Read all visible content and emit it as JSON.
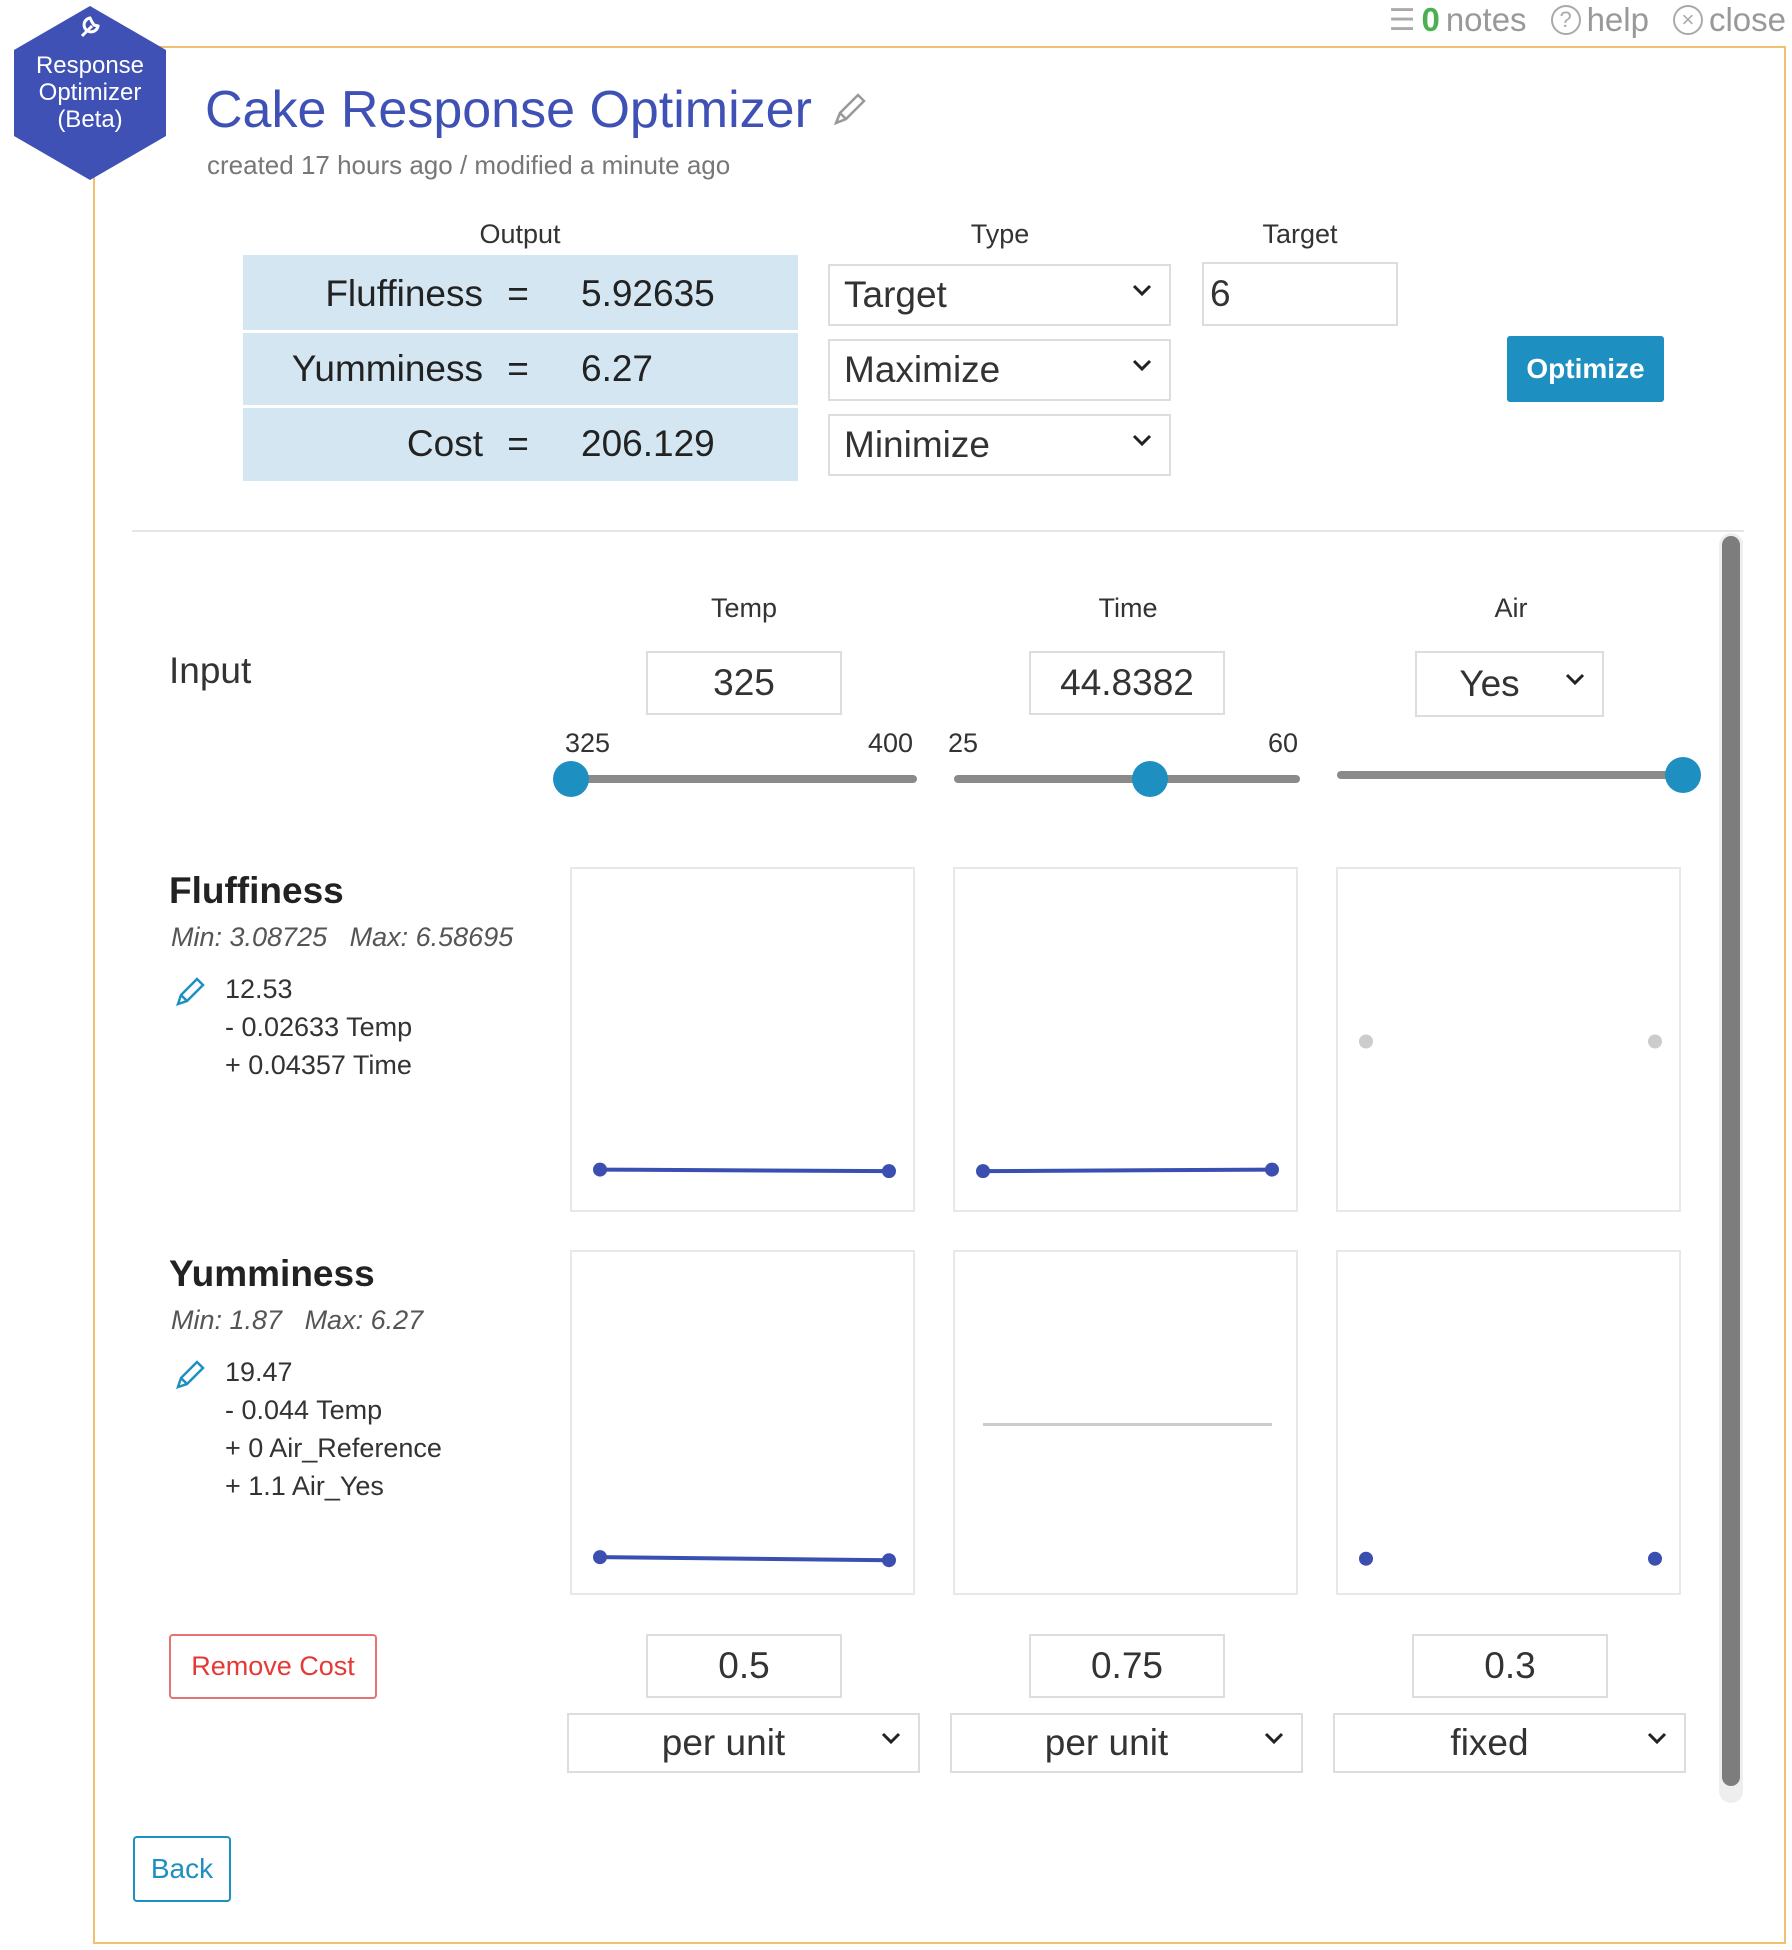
{
  "topbar": {
    "notes_count": "0",
    "notes_label": "notes",
    "help_label": "help",
    "close_label": "close"
  },
  "badge": {
    "line1": "Response",
    "line2": "Optimizer",
    "line3": "(Beta)"
  },
  "header": {
    "title": "Cake Response Optimizer",
    "subtitle": "created 17 hours ago / modified a minute ago"
  },
  "output_table": {
    "col_output": "Output",
    "col_type": "Type",
    "col_target": "Target",
    "rows": [
      {
        "name": "Fluffiness",
        "eq": "=",
        "value": "5.92635",
        "type": "Target",
        "target": "6"
      },
      {
        "name": "Yumminess",
        "eq": "=",
        "value": "6.27",
        "type": "Maximize"
      },
      {
        "name": "Cost",
        "eq": "=",
        "value": "206.129",
        "type": "Minimize"
      }
    ],
    "optimize_label": "Optimize"
  },
  "inputs": {
    "label": "Input",
    "factors": [
      {
        "name": "Temp",
        "value": "325",
        "min": "325",
        "max": "400",
        "slider_fraction": 0.0
      },
      {
        "name": "Time",
        "value": "44.8382",
        "min": "25",
        "max": "60",
        "slider_fraction": 0.567
      },
      {
        "name": "Air",
        "value": "Yes",
        "slider_fraction": 1.0
      }
    ]
  },
  "responses": [
    {
      "name": "Fluffiness",
      "minmax": "Min: 3.08725   Max: 6.58695",
      "equation": [
        "12.53",
        "- 0.02633 Temp",
        "+ 0.04357 Time"
      ]
    },
    {
      "name": "Yumminess",
      "minmax": "Min: 1.87   Max: 6.27",
      "equation": [
        "19.47",
        "- 0.044 Temp",
        "+ 0 Air_Reference",
        "+ 1.1 Air_Yes"
      ]
    }
  ],
  "cost": {
    "remove_label": "Remove Cost",
    "values": [
      "0.5",
      "0.75",
      "0.3"
    ],
    "units": [
      "per unit",
      "per unit",
      "fixed"
    ]
  },
  "back_label": "Back",
  "colors": {
    "accent": "#1e8fc1",
    "title": "#3f51b5",
    "series": "#3a4fb0",
    "output_bg": "#d4e6f1",
    "panel_border": "#f0c070",
    "badge": "#3f51b5"
  },
  "chart_data": [
    {
      "type": "line",
      "response": "Fluffiness",
      "factor": "Temp",
      "series": [
        {
          "values": [
            0.08,
            0.075
          ]
        }
      ],
      "ylim": [
        0,
        1
      ]
    },
    {
      "type": "line",
      "response": "Fluffiness",
      "factor": "Time",
      "series": [
        {
          "values": [
            0.075,
            0.08
          ]
        }
      ],
      "ylim": [
        0,
        1
      ]
    },
    {
      "type": "scatter",
      "response": "Fluffiness",
      "factor": "Air",
      "series": [
        {
          "values": [
            0.5,
            0.5
          ],
          "color": "#cccccc"
        }
      ],
      "ylim": [
        0,
        1
      ]
    },
    {
      "type": "line",
      "response": "Yumminess",
      "factor": "Temp",
      "series": [
        {
          "values": [
            0.065,
            0.055
          ]
        }
      ],
      "ylim": [
        0,
        1
      ]
    },
    {
      "type": "line",
      "response": "Yumminess",
      "factor": "Time",
      "series": [
        {
          "values": [
            0.5,
            0.5
          ],
          "color": "#cccccc"
        }
      ],
      "ylim": [
        0,
        1
      ]
    },
    {
      "type": "scatter",
      "response": "Yumminess",
      "factor": "Air",
      "series": [
        {
          "values": [
            0.06,
            0.06
          ]
        }
      ],
      "ylim": [
        0,
        1
      ]
    }
  ]
}
